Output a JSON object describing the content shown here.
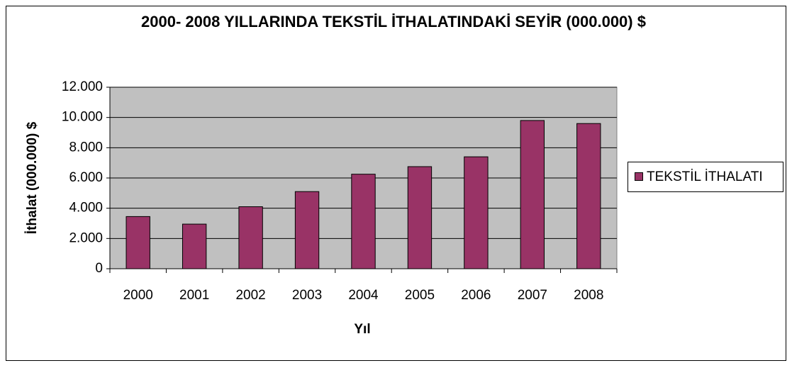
{
  "chart_data": {
    "type": "bar",
    "title": "2000- 2008 YILLARINDA TEKSTİL İTHALATINDAKİ SEYİR (000.000) $",
    "x_label": "Yıl",
    "y_label": "İthalat (000.000) $",
    "categories": [
      "2000",
      "2001",
      "2002",
      "2003",
      "2004",
      "2005",
      "2006",
      "2007",
      "2008"
    ],
    "series": [
      {
        "name": "TEKSTİL İTHALATI",
        "color": "#993366",
        "values": [
          3450,
          2950,
          4100,
          5100,
          6250,
          6750,
          7400,
          9800,
          9600
        ]
      }
    ],
    "ylim": [
      0,
      12000
    ],
    "yticks": [
      0,
      {
        "value": 2000,
        "label": "2.000"
      },
      {
        "value": 4000,
        "label": "4.000"
      },
      {
        "value": 6000,
        "label": "6.000"
      },
      {
        "value": 8000,
        "label": "8.000"
      },
      {
        "value": 10000,
        "label": "10.000"
      },
      {
        "value": 12000,
        "label": "12.000"
      }
    ],
    "grid": true,
    "legend": "right"
  }
}
